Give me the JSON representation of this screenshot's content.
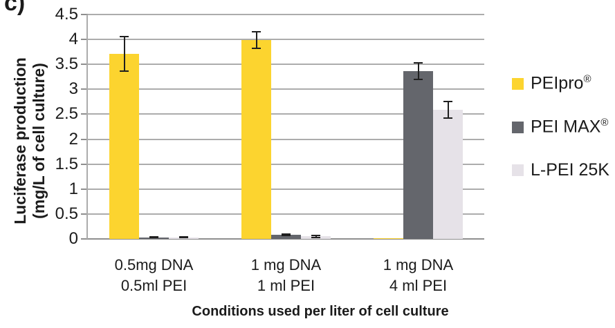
{
  "panel_label": "c)",
  "chart_data": {
    "type": "bar",
    "title": "",
    "xlabel": "Conditions used per liter of cell culture",
    "ylabel": "Luciferase production (mg/L of cell culture)",
    "ylabel_lines": [
      "Luciferase production",
      "(mg/L of cell culture)"
    ],
    "ylim": [
      0,
      4.5
    ],
    "ytick_step": 0.5,
    "ytick_labels": [
      "0",
      "0.5",
      "1",
      "1.5",
      "2",
      "2.5",
      "3",
      "3.5",
      "4",
      "4.5"
    ],
    "grid": "horizontal",
    "legend_position": "right",
    "categories": [
      [
        "0.5mg DNA",
        "0.5ml PEI"
      ],
      [
        "1 mg DNA",
        "1 ml PEI"
      ],
      [
        "1 mg DNA",
        "4 ml PEI"
      ]
    ],
    "series": [
      {
        "name": "PEIpro®",
        "color": "#FCD42F",
        "values": [
          3.71,
          3.99,
          0.01
        ],
        "errors": [
          0.36,
          0.18,
          0
        ]
      },
      {
        "name": "PEI MAX®",
        "color": "#64666C",
        "values": [
          0.03,
          0.08,
          3.37
        ],
        "errors": [
          0.02,
          0.03,
          0.18
        ]
      },
      {
        "name": "L-PEI 25K",
        "color": "#E6E2E8",
        "values": [
          0.03,
          0.05,
          2.59
        ],
        "errors": [
          0.02,
          0.03,
          0.18
        ]
      }
    ],
    "error_bar_color": "#1f1f1f",
    "gridline_color": "#ACACAC",
    "axis_line_color": "#8E8E8E",
    "text_color": "#1b1b1b"
  }
}
